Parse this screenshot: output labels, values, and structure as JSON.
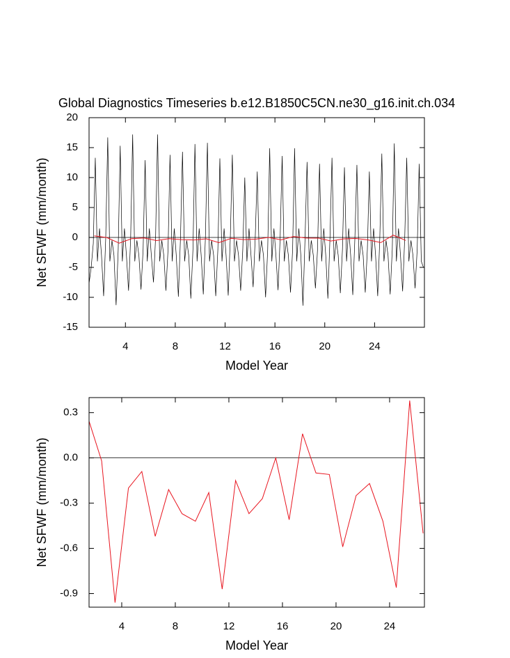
{
  "chart_data": [
    {
      "type": "line",
      "title": "Global Diagnostics Timeseries b.e12.B1850C5CN.ne30_g16.init.ch.034",
      "xlabel": "Model Year",
      "ylabel": "Net SFWF (mm/month)",
      "xlim": [
        1.08,
        28
      ],
      "xticks": [
        4,
        8,
        12,
        16,
        20,
        24
      ],
      "ylim": [
        -15,
        20
      ],
      "yticks": [
        -15,
        -10,
        -5,
        0,
        5,
        10,
        15,
        20
      ],
      "series": [
        {
          "color": "#000000",
          "x": [
            1.08,
            1.25,
            1.42,
            1.58,
            1.75,
            1.92,
            2.08,
            2.25,
            2.42,
            2.58,
            2.75,
            2.92,
            3.08,
            3.25,
            3.42,
            3.58,
            3.75,
            3.92,
            4.08,
            4.25,
            4.42,
            4.58,
            4.75,
            4.92,
            5.08,
            5.25,
            5.42,
            5.58,
            5.75,
            5.92,
            6.08,
            6.25,
            6.42,
            6.58,
            6.75,
            6.92,
            7.08,
            7.25,
            7.42,
            7.58,
            7.75,
            7.92,
            8.08,
            8.25,
            8.42,
            8.58,
            8.75,
            8.92,
            9.08,
            9.25,
            9.42,
            9.58,
            9.75,
            9.92,
            10.08,
            10.25,
            10.42,
            10.58,
            10.75,
            10.92,
            11.08,
            11.25,
            11.42,
            11.58,
            11.75,
            11.92,
            12.08,
            12.25,
            12.42,
            12.58,
            12.75,
            12.92,
            13.08,
            13.25,
            13.42,
            13.58,
            13.75,
            13.92,
            14.08,
            14.25,
            14.42,
            14.58,
            14.75,
            14.92,
            15.08,
            15.25,
            15.42,
            15.58,
            15.75,
            15.92,
            16.08,
            16.25,
            16.42,
            16.58,
            16.75,
            16.92,
            17.08,
            17.25,
            17.42,
            17.58,
            17.75,
            17.92,
            18.08,
            18.25,
            18.42,
            18.58,
            18.75,
            18.92,
            19.08,
            19.25,
            19.42,
            19.58,
            19.75,
            19.92,
            20.08,
            20.25,
            20.42,
            20.58,
            20.75,
            20.92,
            21.08,
            21.25,
            21.42,
            21.58,
            21.75,
            21.92,
            22.08,
            22.25,
            22.42,
            22.58,
            22.75,
            22.92,
            23.08,
            23.25,
            23.42,
            23.58,
            23.75,
            23.92,
            24.08,
            24.25,
            24.42,
            24.58,
            24.75,
            24.92,
            25.08,
            25.25,
            25.42,
            25.58,
            25.75,
            25.92,
            26.08,
            26.25,
            26.42,
            26.58,
            26.75,
            26.92,
            27.08,
            27.25,
            27.42,
            27.58,
            27.75,
            27.92
          ],
          "values": [
            -7.7,
            -5,
            -1,
            13.3,
            -4,
            1.5,
            -3,
            -9.8,
            0,
            16.7,
            -4,
            -0.5,
            -3,
            -11.3,
            -2,
            15.3,
            -4,
            1.5,
            -3,
            -8.9,
            0,
            17.2,
            -4,
            -0.5,
            -3,
            -8.7,
            -2,
            12.9,
            -4,
            1.5,
            -3,
            -7.5,
            0,
            17.2,
            -4,
            -0.5,
            -3,
            -8.9,
            -2,
            13.8,
            -4,
            1.5,
            -3,
            -9.9,
            0,
            14.3,
            -4,
            -0.5,
            -3,
            -10.2,
            -2,
            15.6,
            -4,
            1.5,
            -3,
            -9.5,
            0,
            15.8,
            -4,
            -0.5,
            -3,
            -9.8,
            -2,
            13.2,
            -4,
            1.5,
            -3,
            -9.7,
            0,
            13.8,
            -4,
            -0.5,
            -3,
            -8.9,
            -2,
            10.0,
            -4,
            1.5,
            -3,
            -8.3,
            0,
            11.0,
            -4,
            -0.5,
            -3,
            -10,
            -2,
            14.9,
            -4,
            1.5,
            -3,
            -8.8,
            0,
            13.6,
            -4,
            -0.5,
            -3,
            -9.2,
            -2,
            14.9,
            -4,
            1.5,
            -3,
            -11.4,
            0,
            12.6,
            -4,
            -0.5,
            -3,
            -8.5,
            -2,
            12.3,
            -4,
            1.5,
            -3,
            -10.2,
            0,
            13.3,
            -4,
            -0.5,
            -3,
            -9.3,
            -2,
            11.7,
            -4,
            1.5,
            -3,
            -9.6,
            0,
            12.1,
            -4,
            -0.5,
            -3,
            -9.2,
            -2,
            11.0,
            -4,
            1.5,
            -3,
            -9.8,
            0,
            14.0,
            -4,
            -0.5,
            -3,
            -9.5,
            -2,
            15.7,
            -4,
            1.5,
            -3,
            -9.0,
            0,
            13.3,
            -4,
            -0.5,
            -3,
            -8.5,
            -2,
            12.3,
            -4,
            -5
          ]
        },
        {
          "color": "#e8141e",
          "x": [
            1.5,
            2.5,
            3.5,
            4.5,
            5.5,
            6.5,
            7.5,
            8.5,
            9.5,
            10.5,
            11.5,
            12.5,
            13.5,
            14.5,
            15.5,
            16.5,
            17.5,
            18.5,
            19.5,
            20.5,
            21.5,
            22.5,
            23.5,
            24.5,
            25.5,
            26.5
          ],
          "values": [
            0.26,
            -0.02,
            -0.96,
            -0.2,
            -0.09,
            -0.52,
            -0.21,
            -0.37,
            -0.42,
            -0.23,
            -0.87,
            -0.15,
            -0.37,
            -0.27,
            0.0,
            -0.41,
            0.16,
            -0.1,
            -0.11,
            -0.59,
            -0.25,
            -0.17,
            -0.42,
            -0.86,
            0.38,
            -0.5
          ]
        }
      ]
    },
    {
      "type": "line",
      "xlabel": "Model Year",
      "ylabel": "Net SFWF (mm/month)",
      "xlim": [
        1.56,
        26.6
      ],
      "xticks": [
        4,
        8,
        12,
        16,
        20,
        24
      ],
      "ylim": [
        -0.99,
        0.4
      ],
      "yticks": [
        {
          "value": -0.9,
          "label": "-0.9"
        },
        {
          "value": -0.6,
          "label": "-0.6"
        },
        {
          "value": -0.3,
          "label": "-0.3"
        },
        {
          "value": 0,
          "label": "0.0"
        },
        0.3
      ],
      "series": [
        {
          "color": "#e8141e",
          "x": [
            1.5,
            2.5,
            3.5,
            4.5,
            5.5,
            6.5,
            7.5,
            8.5,
            9.5,
            10.5,
            11.5,
            12.5,
            13.5,
            14.5,
            15.5,
            16.5,
            17.5,
            18.5,
            19.5,
            20.5,
            21.5,
            22.5,
            23.5,
            24.5,
            25.5,
            26.5
          ],
          "values": [
            0.26,
            -0.02,
            -0.96,
            -0.2,
            -0.09,
            -0.52,
            -0.21,
            -0.37,
            -0.42,
            -0.23,
            -0.87,
            -0.15,
            -0.37,
            -0.27,
            0.0,
            -0.41,
            0.16,
            -0.1,
            -0.11,
            -0.59,
            -0.25,
            -0.17,
            -0.42,
            -0.86,
            0.38,
            -0.5
          ]
        }
      ]
    }
  ]
}
